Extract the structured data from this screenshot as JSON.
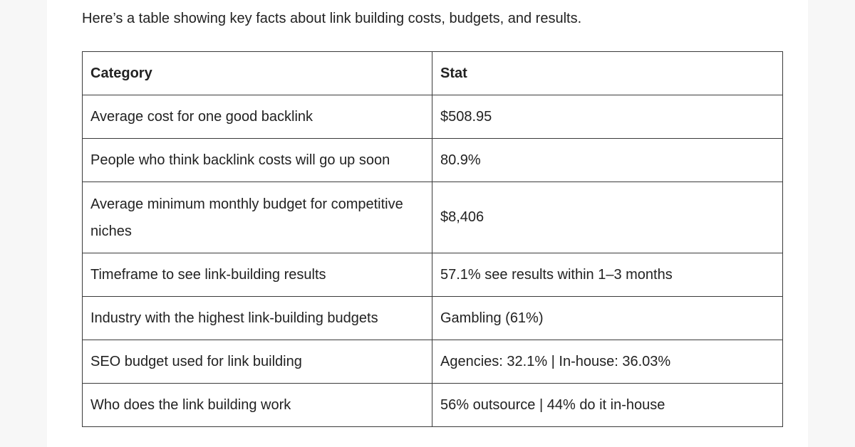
{
  "intro": "Here’s a table showing key facts about link building costs, budgets, and results.",
  "table": {
    "headers": [
      "Category",
      "Stat"
    ],
    "rows": [
      [
        "Average cost for one good backlink",
        "$508.95"
      ],
      [
        "People who think backlink costs will go up soon",
        "80.9%"
      ],
      [
        "Average minimum monthly budget for competitive niches",
        "$8,406"
      ],
      [
        "Timeframe to see link-building results",
        "57.1% see results within 1–3 months"
      ],
      [
        "Industry with the highest link-building budgets",
        "Gambling (61%)"
      ],
      [
        "SEO budget used for link building",
        "Agencies: 32.1% | In-house: 36.03%"
      ],
      [
        "Who does the link building work",
        "56% outsource | 44% do it in-house"
      ]
    ]
  }
}
